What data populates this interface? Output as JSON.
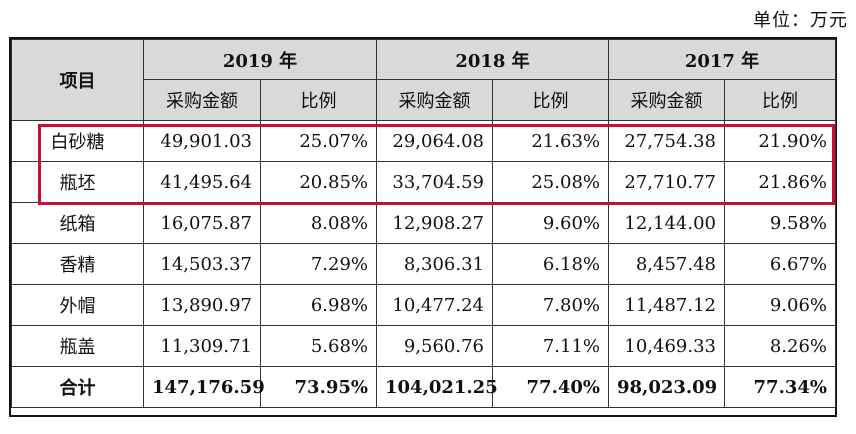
{
  "unit_label": "单位：万元",
  "header": {
    "item_label": "项目",
    "years": [
      "2019 年",
      "2018 年",
      "2017 年"
    ],
    "sub_amount": "采购金额",
    "sub_ratio": "比例"
  },
  "rows": [
    {
      "name": "白砂糖",
      "v": [
        "49,901.03",
        "25.07%",
        "29,064.08",
        "21.63%",
        "27,754.38",
        "21.90%"
      ]
    },
    {
      "name": "瓶坯",
      "v": [
        "41,495.64",
        "20.85%",
        "33,704.59",
        "25.08%",
        "27,710.77",
        "21.86%"
      ]
    },
    {
      "name": "纸箱",
      "v": [
        "16,075.87",
        "8.08%",
        "12,908.27",
        "9.60%",
        "12,144.00",
        "9.58%"
      ]
    },
    {
      "name": "香精",
      "v": [
        "14,503.37",
        "7.29%",
        "8,306.31",
        "6.18%",
        "8,457.48",
        "6.67%"
      ]
    },
    {
      "name": "外帽",
      "v": [
        "13,890.97",
        "6.98%",
        "10,477.24",
        "7.80%",
        "11,487.12",
        "9.06%"
      ]
    },
    {
      "name": "瓶盖",
      "v": [
        "11,309.71",
        "5.68%",
        "9,560.76",
        "7.11%",
        "10,469.33",
        "8.26%"
      ]
    },
    {
      "name": "合计",
      "v": [
        "147,176.59",
        "73.95%",
        "104,021.25",
        "77.40%",
        "98,023.09",
        "77.34%"
      ]
    }
  ],
  "colors": {
    "header_bg": "#d9d9d9",
    "highlight": "#c8102e"
  }
}
